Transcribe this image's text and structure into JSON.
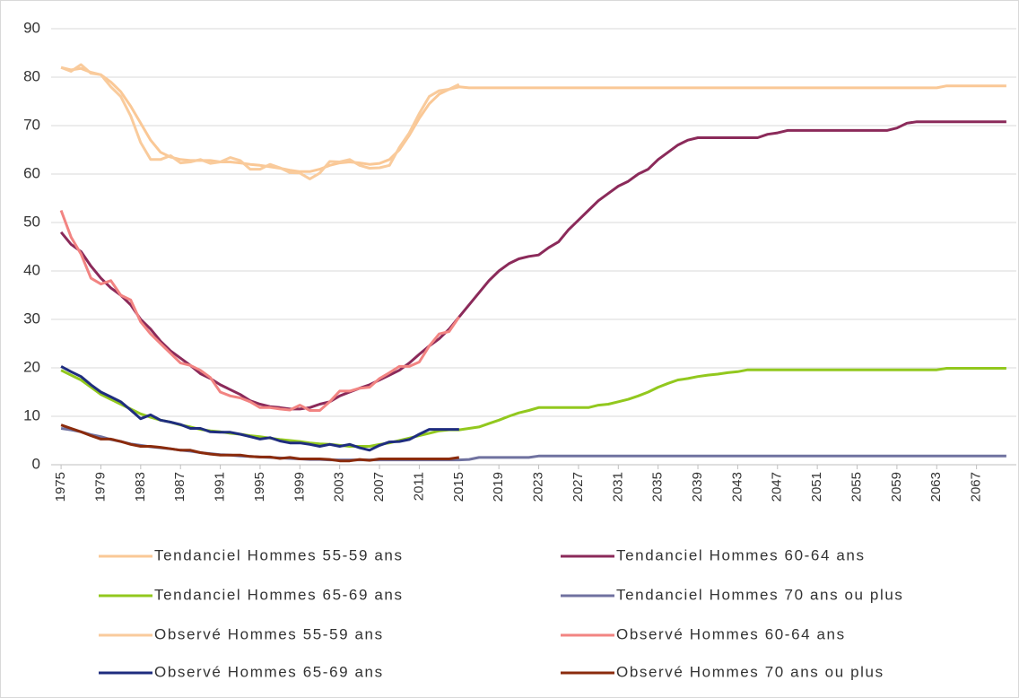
{
  "chart_data": {
    "type": "line",
    "x": [
      1975,
      1976,
      1977,
      1978,
      1979,
      1980,
      1981,
      1982,
      1983,
      1984,
      1985,
      1986,
      1987,
      1988,
      1989,
      1990,
      1991,
      1992,
      1993,
      1994,
      1995,
      1996,
      1997,
      1998,
      1999,
      2000,
      2001,
      2002,
      2003,
      2004,
      2005,
      2006,
      2007,
      2008,
      2009,
      2010,
      2011,
      2012,
      2013,
      2014,
      2015,
      2016,
      2017,
      2018,
      2019,
      2020,
      2021,
      2022,
      2023,
      2024,
      2025,
      2026,
      2027,
      2028,
      2029,
      2030,
      2031,
      2032,
      2033,
      2034,
      2035,
      2036,
      2037,
      2038,
      2039,
      2040,
      2041,
      2042,
      2043,
      2044,
      2045,
      2046,
      2047,
      2048,
      2049,
      2050,
      2051,
      2052,
      2053,
      2054,
      2055,
      2056,
      2057,
      2058,
      2059,
      2060,
      2061,
      2062,
      2063,
      2064,
      2065,
      2066,
      2067,
      2068,
      2069,
      2070
    ],
    "xlim": [
      1974,
      2071
    ],
    "xticks": [
      1975,
      1979,
      1983,
      1987,
      1991,
      1995,
      1999,
      2003,
      2007,
      2011,
      2015,
      2019,
      2023,
      2027,
      2031,
      2035,
      2039,
      2043,
      2047,
      2051,
      2055,
      2059,
      2063,
      2067
    ],
    "ylim": [
      0,
      90
    ],
    "yticks": [
      0,
      10,
      20,
      30,
      40,
      50,
      60,
      70,
      80,
      90
    ],
    "grid": true,
    "legend": "bottom",
    "series": [
      {
        "name": "Tendanciel Hommes 55-59 ans",
        "color": "#fac896",
        "values": [
          82,
          81.5,
          81.8,
          81,
          80.5,
          79,
          77,
          74,
          70.5,
          67,
          64.5,
          63.5,
          63,
          62.8,
          62.8,
          62.8,
          62.5,
          62.5,
          62.3,
          62,
          61.8,
          61.5,
          61.2,
          60.8,
          60.5,
          60.5,
          61,
          61.8,
          62.3,
          62.5,
          62.3,
          62,
          62.2,
          63,
          65,
          68,
          71.5,
          74.5,
          76.5,
          77.5,
          78,
          77.8,
          77.8,
          77.8,
          77.8,
          77.8,
          77.8,
          77.8,
          77.8,
          77.8,
          77.8,
          77.8,
          77.8,
          77.8,
          77.8,
          77.8,
          77.8,
          77.8,
          77.8,
          77.8,
          77.8,
          77.8,
          77.8,
          77.8,
          77.8,
          77.8,
          77.8,
          77.8,
          77.8,
          77.8,
          77.8,
          77.8,
          77.8,
          77.8,
          77.8,
          77.8,
          77.8,
          77.8,
          77.8,
          77.8,
          77.8,
          77.8,
          77.8,
          77.8,
          77.8,
          77.8,
          77.8,
          77.8,
          77.8,
          78.2,
          78.2,
          78.2,
          78.2,
          78.2,
          78.2,
          78.2
        ]
      },
      {
        "name": "Tendanciel Hommes 60-64 ans",
        "color": "#8b2a5a",
        "values": [
          48,
          45.5,
          44,
          41,
          38.5,
          36.5,
          35,
          33,
          30,
          28,
          25.5,
          23.5,
          22,
          20.5,
          18.8,
          17.8,
          16.5,
          15.5,
          14.5,
          13.2,
          12.5,
          12,
          11.8,
          11.5,
          11.5,
          11.8,
          12.5,
          13,
          14.2,
          15,
          15.8,
          16.5,
          17.5,
          18.5,
          19.5,
          21,
          22.8,
          24.5,
          26,
          28,
          30.5,
          33,
          35.5,
          38,
          40,
          41.5,
          42.5,
          43,
          43.3,
          44.8,
          46,
          48.5,
          50.5,
          52.5,
          54.5,
          56,
          57.5,
          58.5,
          60,
          61,
          63,
          64.5,
          66,
          67,
          67.5,
          67.5,
          67.5,
          67.5,
          67.5,
          67.5,
          67.5,
          68.2,
          68.5,
          69,
          69,
          69,
          69,
          69,
          69,
          69,
          69,
          69,
          69,
          69,
          69.5,
          70.5,
          70.8,
          70.8,
          70.8,
          70.8,
          70.8,
          70.8,
          70.8,
          70.8,
          70.8,
          70.8
        ]
      },
      {
        "name": "Tendanciel Hommes 65-69 ans",
        "color": "#92c81e",
        "values": [
          19.5,
          18.5,
          17.5,
          16,
          14.5,
          13.5,
          12.5,
          11.5,
          10.5,
          9.8,
          9.2,
          8.8,
          8.2,
          7.8,
          7.3,
          7,
          6.8,
          6.5,
          6.3,
          6,
          5.8,
          5.5,
          5.2,
          5,
          4.8,
          4.5,
          4.3,
          4.2,
          4,
          3.8,
          3.8,
          3.8,
          4.2,
          4.5,
          5,
          5.5,
          6,
          6.5,
          7,
          7.2,
          7.2,
          7.5,
          7.8,
          8.5,
          9.2,
          10,
          10.7,
          11.2,
          11.8,
          11.8,
          11.8,
          11.8,
          11.8,
          11.8,
          12.3,
          12.5,
          13,
          13.5,
          14.2,
          15,
          16,
          16.8,
          17.5,
          17.8,
          18.2,
          18.5,
          18.7,
          19,
          19.2,
          19.6,
          19.6,
          19.6,
          19.6,
          19.6,
          19.6,
          19.6,
          19.6,
          19.6,
          19.6,
          19.6,
          19.6,
          19.6,
          19.6,
          19.6,
          19.6,
          19.6,
          19.6,
          19.6,
          19.6,
          19.9,
          19.9,
          19.9,
          19.9,
          19.9,
          19.9,
          19.9
        ]
      },
      {
        "name": "Tendanciel Hommes 70 ans ou plus",
        "color": "#7072a0",
        "values": [
          7.5,
          7.2,
          6.8,
          6.2,
          5.8,
          5.2,
          4.8,
          4.3,
          4,
          3.7,
          3.5,
          3.3,
          3,
          2.8,
          2.5,
          2.3,
          2.1,
          2,
          1.8,
          1.7,
          1.6,
          1.5,
          1.4,
          1.3,
          1.2,
          1.1,
          1.1,
          1,
          1,
          1,
          1,
          1,
          1,
          1,
          1,
          1,
          1,
          1,
          1,
          1,
          1,
          1.1,
          1.5,
          1.5,
          1.5,
          1.5,
          1.5,
          1.5,
          1.8,
          1.8,
          1.8,
          1.8,
          1.8,
          1.8,
          1.8,
          1.8,
          1.8,
          1.8,
          1.8,
          1.8,
          1.8,
          1.8,
          1.8,
          1.8,
          1.8,
          1.8,
          1.8,
          1.8,
          1.8,
          1.8,
          1.8,
          1.8,
          1.8,
          1.8,
          1.8,
          1.8,
          1.8,
          1.8,
          1.8,
          1.8,
          1.8,
          1.8,
          1.8,
          1.8,
          1.8,
          1.8,
          1.8,
          1.8,
          1.8,
          1.8,
          1.8,
          1.8,
          1.8,
          1.8,
          1.8,
          1.8
        ]
      },
      {
        "name": "Observé Hommes 55-59 ans",
        "color": "#f9cb9c",
        "values": [
          82,
          81.2,
          82.6,
          80.8,
          80.5,
          78,
          76,
          72,
          66.5,
          63,
          63,
          63.8,
          62.3,
          62.5,
          63,
          62.2,
          62.5,
          63.4,
          62.8,
          61,
          61,
          62,
          61.3,
          60.3,
          60.2,
          59,
          60.2,
          62.6,
          62.5,
          63,
          61.8,
          61.2,
          61.3,
          61.8,
          65.5,
          68.5,
          72.5,
          76,
          77.2,
          77.5,
          78.5,
          null,
          null,
          null,
          null,
          null,
          null,
          null,
          null,
          null,
          null,
          null,
          null,
          null,
          null,
          null,
          null,
          null,
          null,
          null,
          null,
          null,
          null,
          null,
          null,
          null,
          null,
          null,
          null,
          null,
          null,
          null,
          null,
          null,
          null,
          null,
          null,
          null,
          null,
          null,
          null,
          null,
          null,
          null,
          null,
          null,
          null,
          null,
          null,
          null,
          null,
          null,
          null,
          null,
          null,
          null
        ]
      },
      {
        "name": "Observé Hommes 60-64 ans",
        "color": "#f28482",
        "values": [
          52.5,
          47,
          43.5,
          38.5,
          37.3,
          38,
          35,
          34,
          29.5,
          27,
          25,
          23,
          21,
          20.5,
          19.5,
          18,
          15,
          14.2,
          13.8,
          13,
          11.8,
          11.8,
          11.5,
          11.3,
          12.3,
          11.2,
          11.2,
          13,
          15.2,
          15.2,
          15.8,
          16,
          17.8,
          19,
          20.3,
          20.3,
          21.2,
          24.5,
          27,
          27.5,
          30.5,
          null,
          null,
          null,
          null,
          null,
          null,
          null,
          null,
          null,
          null,
          null,
          null,
          null,
          null,
          null,
          null,
          null,
          null,
          null,
          null,
          null,
          null,
          null,
          null,
          null,
          null,
          null,
          null,
          null,
          null,
          null,
          null,
          null,
          null,
          null,
          null,
          null,
          null,
          null,
          null,
          null,
          null,
          null,
          null,
          null,
          null,
          null,
          null,
          null,
          null,
          null,
          null,
          null,
          null,
          null
        ]
      },
      {
        "name": "Observé Hommes 65-69 ans",
        "color": "#1f2d7f",
        "values": [
          20.3,
          19.2,
          18.2,
          16.5,
          15,
          14,
          13,
          11.3,
          9.5,
          10.3,
          9.2,
          8.8,
          8.3,
          7.5,
          7.5,
          6.8,
          6.7,
          6.7,
          6.3,
          5.8,
          5.3,
          5.6,
          4.9,
          4.5,
          4.5,
          4.2,
          3.8,
          4.2,
          3.8,
          4.2,
          3.5,
          3,
          4,
          4.7,
          4.8,
          5.2,
          6.3,
          7.3,
          7.3,
          7.3,
          7.3,
          null,
          null,
          null,
          null,
          null,
          null,
          null,
          null,
          null,
          null,
          null,
          null,
          null,
          null,
          null,
          null,
          null,
          null,
          null,
          null,
          null,
          null,
          null,
          null,
          null,
          null,
          null,
          null,
          null,
          null,
          null,
          null,
          null,
          null,
          null,
          null,
          null,
          null,
          null,
          null,
          null,
          null,
          null,
          null,
          null,
          null,
          null,
          null,
          null,
          null,
          null,
          null,
          null,
          null,
          null
        ]
      },
      {
        "name": "Observé Hommes 70 ans ou plus",
        "color": "#8b2b0c",
        "values": [
          8.2,
          7.5,
          6.8,
          6,
          5.3,
          5.3,
          4.8,
          4.2,
          3.8,
          3.8,
          3.6,
          3.3,
          3,
          3,
          2.5,
          2.2,
          2,
          2,
          2,
          1.7,
          1.6,
          1.6,
          1.3,
          1.5,
          1.2,
          1.2,
          1.2,
          1.1,
          0.8,
          0.8,
          1.1,
          0.9,
          1.2,
          1.2,
          1.2,
          1.2,
          1.2,
          1.2,
          1.2,
          1.2,
          1.5,
          null,
          null,
          null,
          null,
          null,
          null,
          null,
          null,
          null,
          null,
          null,
          null,
          null,
          null,
          null,
          null,
          null,
          null,
          null,
          null,
          null,
          null,
          null,
          null,
          null,
          null,
          null,
          null,
          null,
          null,
          null,
          null,
          null,
          null,
          null,
          null,
          null,
          null,
          null,
          null,
          null,
          null,
          null,
          null,
          null,
          null,
          null,
          null,
          null,
          null,
          null,
          null,
          null,
          null,
          null
        ]
      }
    ]
  }
}
